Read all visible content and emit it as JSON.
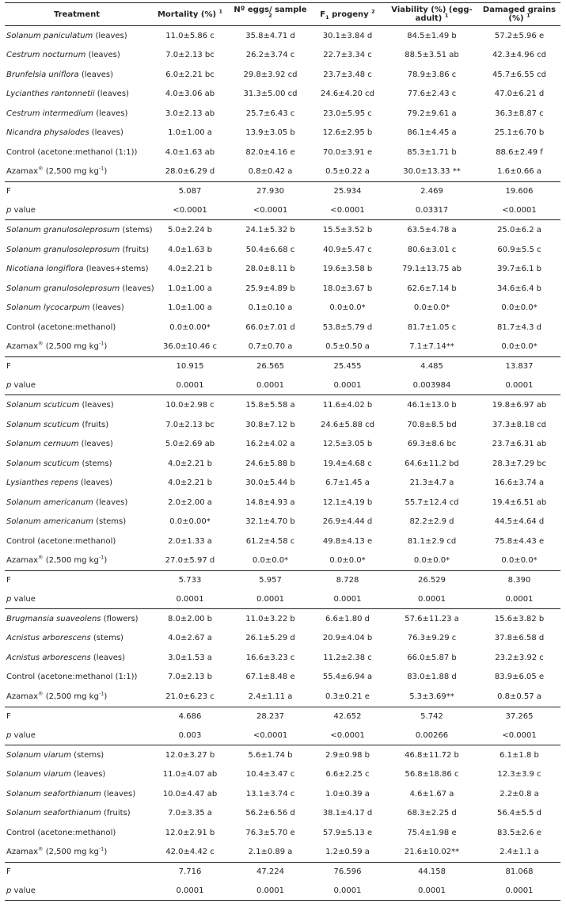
{
  "header": {
    "treatment": "Treatment",
    "mortality": "Mortality (%)",
    "mortality_sup": "1",
    "eggs": "Nº eggs/ sample",
    "eggs_sup": "2",
    "f1_pre": "F",
    "f1_sub": "1",
    "f1_post": " progeny",
    "f1_sup": "2",
    "viability": "Viability (%) (egg-adult)",
    "viability_sup": "1",
    "damaged": "Damaged grains (%)",
    "damaged_sup": "1"
  },
  "groups": [
    {
      "rows": [
        {
          "species": "Solanum paniculatum",
          "part": "(leaves)",
          "ital": true,
          "mortality": "11.0±5.86 c",
          "eggs": "35.8±4.71 d",
          "f1": "30.1±3.84 d",
          "viability": "84.5±1.49 b",
          "damaged": "57.2±5.96 e"
        },
        {
          "species": "Cestrum nocturnum",
          "part": "(leaves)",
          "ital": true,
          "mortality": "7.0±2.13 bc",
          "eggs": "26.2±3.74 c",
          "f1": "22.7±3.34 c",
          "viability": "88.5±3.51 ab",
          "damaged": "42.3±4.96 cd"
        },
        {
          "species": "Brunfelsia uniflora",
          "part": "(leaves)",
          "ital": true,
          "mortality": "6.0±2.21 bc",
          "eggs": "29.8±3.92 cd",
          "f1": "23.7±3.48 c",
          "viability": "78.9±3.86 c",
          "damaged": "45.7±6.55 cd"
        },
        {
          "species": "Lycianthes rantonnetii",
          "part": "(leaves)",
          "ital": true,
          "mortality": "4.0±3.06 ab",
          "eggs": "31.3±5.00 cd",
          "f1": "24.6±4.20 cd",
          "viability": "77.6±2.43 c",
          "damaged": "47.0±6.21 d"
        },
        {
          "species": "Cestrum intermedium",
          "part": "(leaves)",
          "ital": true,
          "mortality": "3.0±2.13 ab",
          "eggs": "25.7±6.43 c",
          "f1": "23.0±5.95 c",
          "viability": "79.2±9.61 a",
          "damaged": "36.3±8.87 c"
        },
        {
          "species": "Nicandra physalodes",
          "part": "(leaves)",
          "ital": true,
          "mortality": "1.0±1.00 a",
          "eggs": "13.9±3.05 b",
          "f1": "12.6±2.95 b",
          "viability": "86.1±4.45 a",
          "damaged": "25.1±6.70 b"
        },
        {
          "species": "Control (acetone:methanol (1:1))",
          "part": "",
          "ital": false,
          "mortality": "4.0±1.63 ab",
          "eggs": "82.0±4.16 e",
          "f1": "70.0±3.91 e",
          "viability": "85.3±1.71 b",
          "damaged": "88.6±2.49 f"
        },
        {
          "species": "Azamax",
          "sup": "®",
          "part": "(2,500 mg kg",
          "unit_sup": "-1",
          "part_end": ")",
          "ital": false,
          "mortality": "28.0±6.29 d",
          "eggs": "0.8±0.42 a",
          "f1": "0.5±0.22 a",
          "viability": "30.0±13.33 **",
          "damaged": "1.6±0.66 a"
        }
      ],
      "F": {
        "label": "F",
        "mortality": "5.087",
        "eggs": "27.930",
        "f1": "25.934",
        "viability": "2.469",
        "damaged": "19.606"
      },
      "p": {
        "label": "p",
        "label_rest": " value",
        "mortality": "<0.0001",
        "eggs": "<0.0001",
        "f1": "<0.0001",
        "viability": "0.03317",
        "damaged": "<0.0001"
      }
    },
    {
      "rows": [
        {
          "species": "Solanum granulosoleprosum",
          "part": "(stems)",
          "ital": true,
          "mortality": "5.0±2.24 b",
          "eggs": "24.1±5.32 b",
          "f1": "15.5±3.52 b",
          "viability": "63.5±4.78 a",
          "damaged": "25.0±6.2 a"
        },
        {
          "species": "Solanum granulosoleprosum",
          "part": "(fruits)",
          "ital": true,
          "mortality": "4.0±1.63 b",
          "eggs": "50.4±6.68 c",
          "f1": "40.9±5.47 c",
          "viability": "80.6±3.01 c",
          "damaged": "60.9±5.5 c"
        },
        {
          "species": "Nicotiana longiflora",
          "part": "(leaves+stems)",
          "ital": true,
          "mortality": "4.0±2.21 b",
          "eggs": "28.0±8.11 b",
          "f1": "19.6±3.58 b",
          "viability": "79.1±13.75 ab",
          "damaged": "39.7±6.1 b"
        },
        {
          "species": "Solanum granulosoleprosum",
          "part": "(leaves)",
          "ital": true,
          "mortality": "1.0±1.00 a",
          "eggs": "25.9±4.89 b",
          "f1": "18.0±3.67 b",
          "viability": "62.6±7.14 b",
          "damaged": "34.6±6.4 b"
        },
        {
          "species": "Solanum lycocarpum",
          "part": "(leaves)",
          "ital": true,
          "mortality": "1.0±1.00 a",
          "eggs": "0.1±0.10 a",
          "f1": "0.0±0.0*",
          "viability": "0.0±0.0*",
          "damaged": "0.0±0.0*"
        },
        {
          "species": "Control (acetone:methanol)",
          "part": "",
          "ital": false,
          "mortality": "0.0±0.00*",
          "eggs": "66.0±7.01 d",
          "f1": "53.8±5.79 d",
          "viability": "81.7±1.05 c",
          "damaged": "81.7±4.3 d"
        },
        {
          "species": "Azamax",
          "sup": "®",
          "part": "(2,500 mg kg",
          "unit_sup": "-1",
          "part_end": ")",
          "ital": false,
          "mortality": "36.0±10.46 c",
          "eggs": "0.7±0.70 a",
          "f1": "0.5±0.50 a",
          "viability": "7.1±7.14**",
          "damaged": "0.0±0.0*"
        }
      ],
      "F": {
        "label": "F",
        "mortality": "10.915",
        "eggs": "26.565",
        "f1": "25.455",
        "viability": "4.485",
        "damaged": "13.837"
      },
      "p": {
        "label": "p",
        "label_rest": " value",
        "mortality": "0.0001",
        "eggs": "0.0001",
        "f1": "0.0001",
        "viability": "0.003984",
        "damaged": "0.0001"
      }
    },
    {
      "rows": [
        {
          "species": "Solanum scuticum",
          "part": "(leaves)",
          "ital": true,
          "mortality": "10.0±2.98 c",
          "eggs": "15.8±5.58 a",
          "f1": "11.6±4.02 b",
          "viability": "46.1±13.0 b",
          "damaged": "19.8±6.97 ab"
        },
        {
          "species": "Solanum scuticum",
          "part": "(fruits)",
          "ital": true,
          "mortality": "7.0±2.13 bc",
          "eggs": "30.8±7.12 b",
          "f1": "24.6±5.88 cd",
          "viability": "70.8±8.5 bd",
          "damaged": "37.3±8.18 cd"
        },
        {
          "species": "Solanum cernuum",
          "part": "(leaves)",
          "ital": true,
          "mortality": "5.0±2.69 ab",
          "eggs": "16.2±4.02 a",
          "f1": "12.5±3.05 b",
          "viability": "69.3±8.6 bc",
          "damaged": "23.7±6.31 ab"
        },
        {
          "species": "Solanum scuticum",
          "part": "(stems)",
          "ital": true,
          "mortality": "4.0±2.21 b",
          "eggs": "24.6±5.88 b",
          "f1": "19.4±4.68 c",
          "viability": "64.6±11.2 bd",
          "damaged": "28.3±7.29 bc"
        },
        {
          "species": "Lysianthes repens",
          "part": "(leaves)",
          "ital": true,
          "mortality": "4.0±2.21 b",
          "eggs": "30.0±5.44 b",
          "f1": "6.7±1.45 a",
          "viability": "21.3±4.7 a",
          "damaged": "16.6±3.74 a"
        },
        {
          "species": "Solanum americanum",
          "part": "(leaves)",
          "ital": true,
          "mortality": "2.0±2.00 a",
          "eggs": "14.8±4.93 a",
          "f1": "12.1±4.19 b",
          "viability": "55.7±12.4 cd",
          "damaged": "19.4±6.51 ab"
        },
        {
          "species": "Solanum americanum",
          "part": "(stems)",
          "ital": true,
          "mortality": "0.0±0.00*",
          "eggs": "32.1±4.70 b",
          "f1": "26.9±4.44 d",
          "viability": "82.2±2.9 d",
          "damaged": "44.5±4.64 d"
        },
        {
          "species": "Control (acetone:methanol)",
          "part": "",
          "ital": false,
          "mortality": "2.0±1.33 a",
          "eggs": "61.2±4.58 c",
          "f1": "49.8±4.13 e",
          "viability": "81.1±2.9 cd",
          "damaged": "75.8±4.43 e"
        },
        {
          "species": "Azamax",
          "sup": "®",
          "part": "(2,500 mg kg",
          "unit_sup": "-1",
          "part_end": ")",
          "ital": false,
          "mortality": "27.0±5.97 d",
          "eggs": "0.0±0.0*",
          "f1": "0.0±0.0*",
          "viability": "0.0±0.0*",
          "damaged": "0.0±0.0*"
        }
      ],
      "F": {
        "label": "F",
        "mortality": "5.733",
        "eggs": "5.957",
        "f1": "8.728",
        "viability": "26.529",
        "damaged": "8.390"
      },
      "p": {
        "label": "p",
        "label_rest": " value",
        "mortality": "0.0001",
        "eggs": "0.0001",
        "f1": "0.0001",
        "viability": "0.0001",
        "damaged": "0.0001"
      }
    },
    {
      "rows": [
        {
          "species": "Brugmansia suaveolens",
          "part": "(flowers)",
          "ital": true,
          "mortality": "8.0±2.00 b",
          "eggs": "11.0±3.22 b",
          "f1": "6.6±1.80 d",
          "viability": "57.6±11.23 a",
          "damaged": "15.6±3.82 b"
        },
        {
          "species": "Acnistus arborescens",
          "part": "(stems)",
          "ital": true,
          "mortality": "4.0±2.67 a",
          "eggs": "26.1±5.29 d",
          "f1": "20.9±4.04 b",
          "viability": "76.3±9.29 c",
          "damaged": "37.8±6.58 d"
        },
        {
          "species": "Acnistus arborescens",
          "part": "(leaves)",
          "ital": true,
          "mortality": "3.0±1.53 a",
          "eggs": "16.6±3.23 c",
          "f1": "11.2±2.38 c",
          "viability": "66.0±5.87 b",
          "damaged": "23.2±3.92 c"
        },
        {
          "species": "Control (acetone:methanol (1:1))",
          "part": "",
          "ital": false,
          "mortality": "7.0±2.13 b",
          "eggs": "67.1±8.48 e",
          "f1": "55.4±6.94 a",
          "viability": "83.0±1.88 d",
          "damaged": "83.9±6.05 e"
        },
        {
          "species": "Azamax",
          "sup": "®",
          "part": "(2,500 mg kg",
          "unit_sup": "-1",
          "part_end": ")",
          "ital": false,
          "mortality": "21.0±6.23 c",
          "eggs": "2.4±1.11 a",
          "f1": "0.3±0.21 e",
          "viability": "5.3±3.69**",
          "damaged": "0.8±0.57 a"
        }
      ],
      "F": {
        "label": "F",
        "mortality": "4.686",
        "eggs": "28.237",
        "f1": "42.652",
        "viability": "5.742",
        "damaged": "37.265"
      },
      "p": {
        "label": "p",
        "label_rest": " value",
        "mortality": "0.003",
        "eggs": "<0.0001",
        "f1": "<0.0001",
        "viability": "0.00266",
        "damaged": "<0.0001"
      }
    },
    {
      "rows": [
        {
          "species": "Solanum viarum",
          "part": "(stems)",
          "ital": true,
          "mortality": "12.0±3.27 b",
          "eggs": "5.6±1.74 b",
          "f1": "2.9±0.98 b",
          "viability": "46.8±11.72 b",
          "damaged": "6.1±1.8 b"
        },
        {
          "species": "Solanum viarum",
          "part": "(leaves)",
          "ital": true,
          "mortality": "11.0±4.07 ab",
          "eggs": "10.4±3.47 c",
          "f1": "6.6±2.25 c",
          "viability": "56.8±18.86 c",
          "damaged": "12.3±3.9 c"
        },
        {
          "species": "Solanum seaforthianum",
          "part": "(leaves)",
          "ital": true,
          "mortality": "10.0±4.47 ab",
          "eggs": "13.1±3.74 c",
          "f1": "1.0±0.39 a",
          "viability": "4.6±1.67 a",
          "damaged": "2.2±0.8 a"
        },
        {
          "species": "Solanum seaforthianum",
          "part": "(fruits)",
          "ital": true,
          "mortality": "7.0±3.35 a",
          "eggs": "56.2±6.56 d",
          "f1": "38.1±4.17 d",
          "viability": "68.3±2.25 d",
          "damaged": "56.4±5.5 d"
        },
        {
          "species": "Control (acetone:methanol)",
          "part": "",
          "ital": false,
          "mortality": "12.0±2.91 b",
          "eggs": "76.3±5.70 e",
          "f1": "57.9±5.13 e",
          "viability": "75.4±1.98 e",
          "damaged": "83.5±2.6 e"
        },
        {
          "species": "Azamax",
          "sup": "®",
          "part": "(2,500 mg kg",
          "unit_sup": "-1",
          "part_end": ")",
          "ital": false,
          "mortality": "42.0±4.42 c",
          "eggs": "2.1±0.89 a",
          "f1": "1.2±0.59 a",
          "viability": "21.6±10.02**",
          "damaged": "2.4±1.1 a"
        }
      ],
      "F": {
        "label": "F",
        "mortality": "7.716",
        "eggs": "47.224",
        "f1": "76.596",
        "viability": "44.158",
        "damaged": "81.068"
      },
      "p": {
        "label": "p",
        "label_rest": " value",
        "mortality": "0.0001",
        "eggs": "0.0001",
        "f1": "0.0001",
        "viability": "0.0001",
        "damaged": "0.0001"
      }
    }
  ]
}
